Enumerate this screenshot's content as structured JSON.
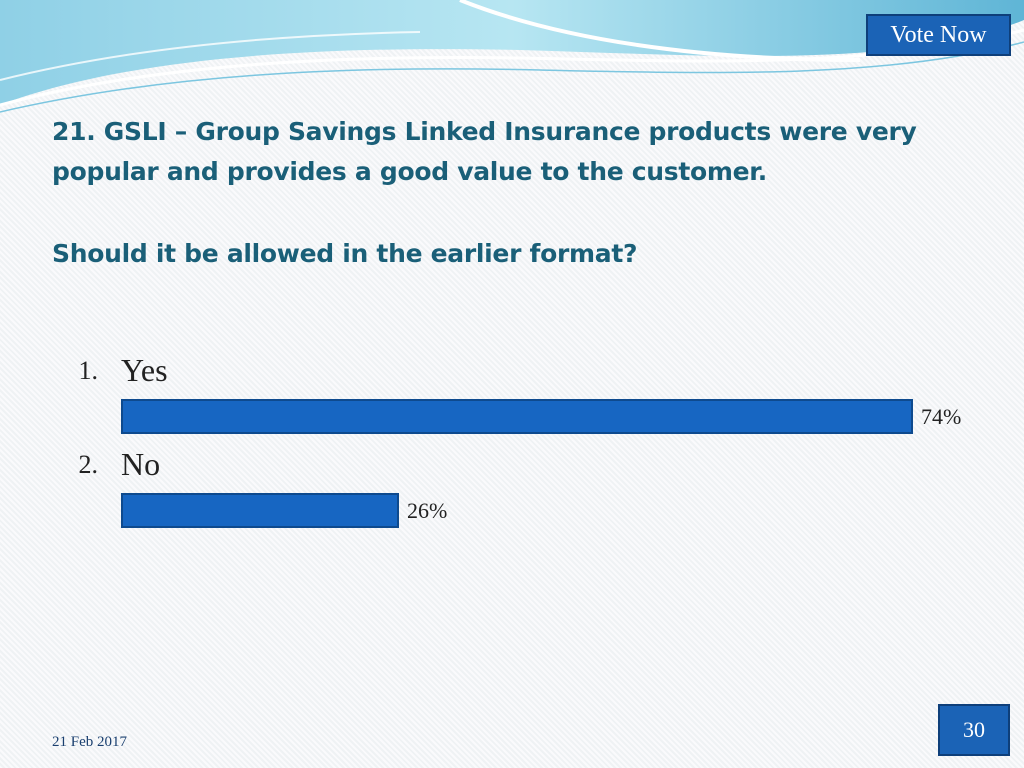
{
  "header": {
    "vote_button": "Vote Now"
  },
  "question": {
    "title": "21. GSLI – Group Savings Linked Insurance products were very popular and provides a good value to the customer.",
    "subtitle": "Should it be allowed in the earlier format?"
  },
  "chart_data": {
    "type": "bar",
    "orientation": "horizontal",
    "categories": [
      "Yes",
      "No"
    ],
    "values": [
      74,
      26
    ],
    "value_labels": [
      "74%",
      "26%"
    ],
    "numbers": [
      "1.",
      "2."
    ],
    "bar_color": "#1766c2"
  },
  "footer": {
    "date": "21 Feb 2017",
    "page_number": "30"
  },
  "colors": {
    "accent": "#1b63b6",
    "text": "#1a5f78"
  }
}
